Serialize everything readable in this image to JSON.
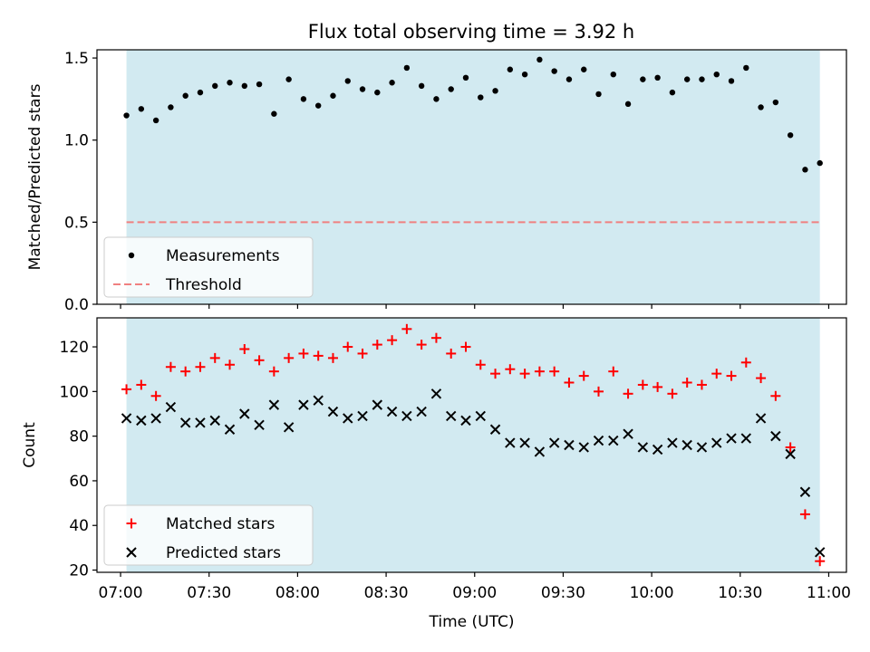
{
  "chart_data": [
    {
      "type": "scatter",
      "title": "Flux total observing time = 3.92 h",
      "ylabel": "Matched/Predicted stars",
      "xlabel": "",
      "ylim": [
        0,
        1.55
      ],
      "yticks": [
        0.0,
        0.5,
        1.0,
        1.5
      ],
      "ytick_labels": [
        "0.0",
        "0.5",
        "1.0",
        "1.5"
      ],
      "shaded_span": [
        "07:02",
        "10:57"
      ],
      "shade_color": "#add8e6",
      "threshold": 0.5,
      "legend_position": "lower-left",
      "series": [
        {
          "name": "Measurements",
          "marker": "dot",
          "color": "#000000",
          "x": [
            "07:02",
            "07:07",
            "07:12",
            "07:17",
            "07:22",
            "07:27",
            "07:32",
            "07:37",
            "07:42",
            "07:47",
            "07:52",
            "07:57",
            "08:02",
            "08:07",
            "08:12",
            "08:17",
            "08:22",
            "08:27",
            "08:32",
            "08:37",
            "08:42",
            "08:47",
            "08:52",
            "08:57",
            "09:02",
            "09:07",
            "09:12",
            "09:17",
            "09:22",
            "09:27",
            "09:32",
            "09:37",
            "09:42",
            "09:47",
            "09:52",
            "09:57",
            "10:02",
            "10:07",
            "10:12",
            "10:17",
            "10:22",
            "10:27",
            "10:32",
            "10:37",
            "10:42",
            "10:47",
            "10:52",
            "10:57"
          ],
          "y": [
            1.15,
            1.19,
            1.12,
            1.2,
            1.27,
            1.29,
            1.33,
            1.35,
            1.33,
            1.34,
            1.16,
            1.37,
            1.25,
            1.21,
            1.27,
            1.36,
            1.31,
            1.29,
            1.35,
            1.44,
            1.33,
            1.25,
            1.31,
            1.38,
            1.26,
            1.3,
            1.43,
            1.4,
            1.49,
            1.42,
            1.37,
            1.43,
            1.28,
            1.4,
            1.22,
            1.37,
            1.38,
            1.29,
            1.37,
            1.37,
            1.4,
            1.36,
            1.44,
            1.2,
            1.23,
            1.03,
            0.82,
            0.86
          ]
        },
        {
          "name": "Threshold",
          "line_style": "dashed",
          "color": "#f08080",
          "x": [
            "07:02",
            "10:57"
          ],
          "y": [
            0.5,
            0.5
          ]
        }
      ]
    },
    {
      "type": "scatter",
      "title": "",
      "ylabel": "Count",
      "xlabel": "Time (UTC)",
      "ylim": [
        19,
        133
      ],
      "yticks": [
        20,
        40,
        60,
        80,
        100,
        120
      ],
      "ytick_labels": [
        "20",
        "40",
        "60",
        "80",
        "100",
        "120"
      ],
      "xticks": [
        "07:00",
        "07:30",
        "08:00",
        "08:30",
        "09:00",
        "09:30",
        "10:00",
        "10:30",
        "11:00"
      ],
      "shaded_span": [
        "07:02",
        "10:57"
      ],
      "shade_color": "#add8e6",
      "legend_position": "lower-left",
      "series": [
        {
          "name": "Matched stars",
          "marker": "plus",
          "color": "#ff0000",
          "x": [
            "07:02",
            "07:07",
            "07:12",
            "07:17",
            "07:22",
            "07:27",
            "07:32",
            "07:37",
            "07:42",
            "07:47",
            "07:52",
            "07:57",
            "08:02",
            "08:07",
            "08:12",
            "08:17",
            "08:22",
            "08:27",
            "08:32",
            "08:37",
            "08:42",
            "08:47",
            "08:52",
            "08:57",
            "09:02",
            "09:07",
            "09:12",
            "09:17",
            "09:22",
            "09:27",
            "09:32",
            "09:37",
            "09:42",
            "09:47",
            "09:52",
            "09:57",
            "10:02",
            "10:07",
            "10:12",
            "10:17",
            "10:22",
            "10:27",
            "10:32",
            "10:37",
            "10:42",
            "10:47",
            "10:52",
            "10:57"
          ],
          "y": [
            101,
            103,
            98,
            111,
            109,
            111,
            115,
            112,
            119,
            114,
            109,
            115,
            117,
            116,
            115,
            120,
            117,
            121,
            123,
            128,
            121,
            124,
            117,
            120,
            112,
            108,
            110,
            108,
            109,
            109,
            104,
            107,
            100,
            109,
            99,
            103,
            102,
            99,
            104,
            103,
            108,
            107,
            113,
            106,
            98,
            75,
            45,
            24
          ]
        },
        {
          "name": "Predicted stars",
          "marker": "x",
          "color": "#000000",
          "x": [
            "07:02",
            "07:07",
            "07:12",
            "07:17",
            "07:22",
            "07:27",
            "07:32",
            "07:37",
            "07:42",
            "07:47",
            "07:52",
            "07:57",
            "08:02",
            "08:07",
            "08:12",
            "08:17",
            "08:22",
            "08:27",
            "08:32",
            "08:37",
            "08:42",
            "08:47",
            "08:52",
            "08:57",
            "09:02",
            "09:07",
            "09:12",
            "09:17",
            "09:22",
            "09:27",
            "09:32",
            "09:37",
            "09:42",
            "09:47",
            "09:52",
            "09:57",
            "10:02",
            "10:07",
            "10:12",
            "10:17",
            "10:22",
            "10:27",
            "10:32",
            "10:37",
            "10:42",
            "10:47",
            "10:52",
            "10:57"
          ],
          "y": [
            88,
            87,
            88,
            93,
            86,
            86,
            87,
            83,
            90,
            85,
            94,
            84,
            94,
            96,
            91,
            88,
            89,
            94,
            91,
            89,
            91,
            99,
            89,
            87,
            89,
            83,
            77,
            77,
            73,
            77,
            76,
            75,
            78,
            78,
            81,
            75,
            74,
            77,
            76,
            75,
            77,
            79,
            79,
            88,
            80,
            72,
            55,
            28
          ]
        }
      ]
    }
  ]
}
